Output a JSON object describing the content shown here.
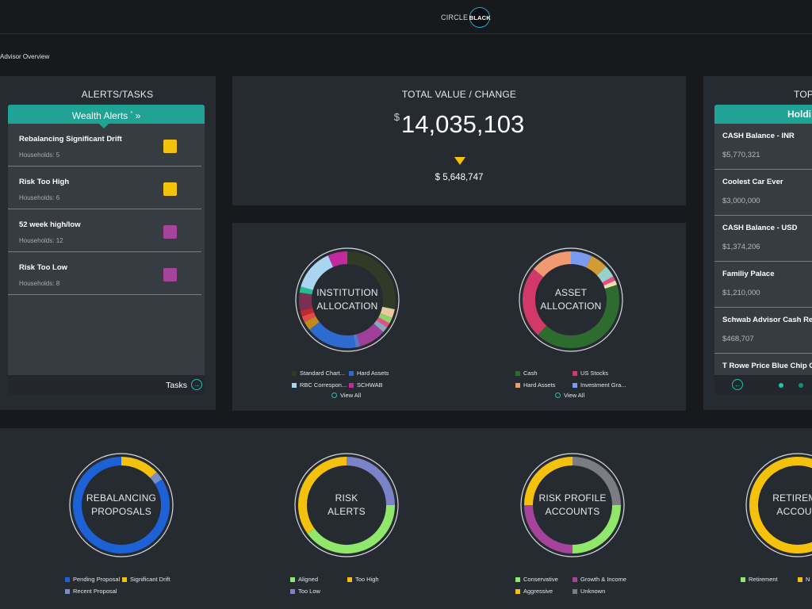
{
  "logo": {
    "left": "CIRCLE",
    "right": "BLACK"
  },
  "breadcrumb": "Advisor Overview",
  "alerts_panel": {
    "title": "ALERTS/TASKS",
    "header": "Wealth Alerts",
    "header_suffix": "»",
    "items": [
      {
        "name": "Rebalancing Significant Drift",
        "sub": "Households: 5",
        "color": "#f4c20d"
      },
      {
        "name": "Risk Too High",
        "sub": "Households: 6",
        "color": "#f4c20d"
      },
      {
        "name": "52 week high/low",
        "sub": "Households: 12",
        "color": "#a5449a"
      },
      {
        "name": "Risk Too Low",
        "sub": "Households: 8",
        "color": "#a5449a"
      }
    ],
    "tasks_label": "Tasks"
  },
  "total": {
    "title": "TOTAL VALUE / CHANGE",
    "currency": "$",
    "value": "14,035,103",
    "change": "$ 5,648,747"
  },
  "holdings": {
    "title": "TOP",
    "header": "Holdi",
    "items": [
      {
        "name": "CASH Balance - INR",
        "value": "$5,770,321"
      },
      {
        "name": "Coolest Car Ever",
        "value": "$3,000,000"
      },
      {
        "name": "CASH Balance - USD",
        "value": "$1,374,206"
      },
      {
        "name": "Familiy Palace",
        "value": "$1,210,000"
      },
      {
        "name": "Schwab Advisor Cash Res",
        "value": "$468,707"
      },
      {
        "name": "T Rowe Price Blue Chip G",
        "value": ""
      }
    ]
  },
  "colors": {
    "teal": "#1fa395",
    "accent": "#1fc2ad",
    "yellow": "#f4c20d",
    "purple": "#a5449a"
  },
  "charts": {
    "institution": {
      "label": [
        "INSTITUTION",
        "ALLOCATION"
      ],
      "segments": [
        {
          "value": 28,
          "color": "#2f3a27"
        },
        {
          "value": 3,
          "color": "#e8c9a0"
        },
        {
          "value": 2,
          "color": "#93d26a"
        },
        {
          "value": 1.5,
          "color": "#e94b8b"
        },
        {
          "value": 2,
          "color": "#8da7b8"
        },
        {
          "value": 9,
          "color": "#9f3f9a"
        },
        {
          "value": 1.5,
          "color": "#5c76c6"
        },
        {
          "value": 17,
          "color": "#2d6bd1"
        },
        {
          "value": 3,
          "color": "#c08a1e"
        },
        {
          "value": 2,
          "color": "#e14b4b"
        },
        {
          "value": 2,
          "color": "#c22a2a"
        },
        {
          "value": 6,
          "color": "#7a2f55"
        },
        {
          "value": 2,
          "color": "#1fbf8e"
        },
        {
          "value": 14,
          "color": "#a9d5f0"
        },
        {
          "value": 6.5,
          "color": "#c4289e"
        }
      ],
      "legend": [
        {
          "label": "Standard Chart...",
          "color": "#2f3a27"
        },
        {
          "label": "Hard Assets",
          "color": "#2d6bd1"
        },
        {
          "label": "RBC Correspon...",
          "color": "#a9d5f0"
        },
        {
          "label": "SCHWAB",
          "color": "#c4289e"
        }
      ],
      "viewall": "View All"
    },
    "asset": {
      "label": [
        "ASSET",
        "ALLOCATION"
      ],
      "segments": [
        {
          "value": 7,
          "color": "#7a9bee"
        },
        {
          "value": 6,
          "color": "#d29b35"
        },
        {
          "value": 4,
          "color": "#9ad1c9"
        },
        {
          "value": 1.5,
          "color": "#e94b8b"
        },
        {
          "value": 1.5,
          "color": "#f2e1b0"
        },
        {
          "value": 42,
          "color": "#2e6b2f"
        },
        {
          "value": 24,
          "color": "#d13968"
        },
        {
          "value": 14,
          "color": "#f19a72"
        }
      ],
      "legend": [
        {
          "label": "Cash",
          "color": "#2e6b2f"
        },
        {
          "label": "US Stocks",
          "color": "#d13968"
        },
        {
          "label": "Hard Assets",
          "color": "#f19a72"
        },
        {
          "label": "Investment Gra...",
          "color": "#7a9bee"
        }
      ],
      "viewall": "View All"
    },
    "rebalancing": {
      "label": [
        "REBALANCING",
        "PROPOSALS"
      ],
      "segments": [
        {
          "value": 13,
          "color": "#f4c20d"
        },
        {
          "value": 3,
          "color": "#7c8cc7"
        },
        {
          "value": 84,
          "color": "#1c62d6"
        }
      ],
      "legend": [
        {
          "label": "Pending Proposal",
          "color": "#1c62d6"
        },
        {
          "label": "Significant Drift",
          "color": "#f4c20d"
        },
        {
          "label": "Recent Proposal",
          "color": "#7c8cc7"
        }
      ]
    },
    "risk": {
      "label": [
        "RISK",
        "ALERTS"
      ],
      "segments": [
        {
          "value": 25,
          "color": "#7c82c7"
        },
        {
          "value": 40,
          "color": "#8fe86a"
        },
        {
          "value": 35,
          "color": "#f4c20d"
        }
      ],
      "legend": [
        {
          "label": "Aligned",
          "color": "#8fe86a"
        },
        {
          "label": "Too High",
          "color": "#f4c20d"
        },
        {
          "label": "Too Low",
          "color": "#7c82c7"
        }
      ]
    },
    "riskprofile": {
      "label": [
        "RISK PROFILE",
        "ACCOUNTS"
      ],
      "segments": [
        {
          "value": 25,
          "color": "#7b7d80"
        },
        {
          "value": 25,
          "color": "#8fe86a"
        },
        {
          "value": 25,
          "color": "#a5449a"
        },
        {
          "value": 25,
          "color": "#f4c20d"
        }
      ],
      "legend": [
        {
          "label": "Conservative",
          "color": "#8fe86a"
        },
        {
          "label": "Growth & Income",
          "color": "#a5449a"
        },
        {
          "label": "Aggressive",
          "color": "#f4c20d"
        },
        {
          "label": "Unknown",
          "color": "#7b7d80"
        }
      ]
    },
    "retirement": {
      "label": [
        "RETIREME",
        "ACCOUN"
      ],
      "segments": [
        {
          "value": 100,
          "color": "#f4c20d"
        }
      ],
      "legend": [
        {
          "label": "Retirement",
          "color": "#8fe86a"
        },
        {
          "label": "N",
          "color": "#f4c20d"
        }
      ]
    }
  }
}
